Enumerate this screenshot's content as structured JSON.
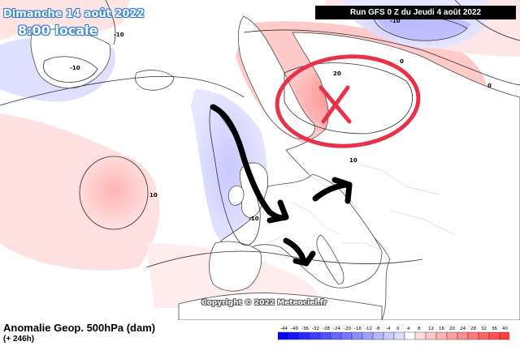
{
  "header": {
    "date": "Dimanche 14 août 2022",
    "time": "8:00 locale",
    "run": "Run GFS 0 Z du Jeudi 4 août 2022"
  },
  "map": {
    "copyright": "Copyright © 2022 Meteociel.fr",
    "contour_labels": [
      "-10",
      "-10",
      "-10",
      "0",
      "0",
      "20",
      "10",
      "-10",
      "10"
    ],
    "anomaly_colors": {
      "negative": "#dcdcff",
      "positive_weak": "#ffdcdc",
      "positive_mid": "#ff9b9b",
      "positive_strong": "#ff8282",
      "land": "#ffffff",
      "coast": "#4a4a4a",
      "annotation_red": "#e8324a",
      "annotation_black": "#000000"
    }
  },
  "footer": {
    "title": "Anomalie Geop. 500hPa (dam)",
    "lead": "(+ 246h)",
    "scale_labels": [
      "-44",
      "-40",
      "-36",
      "-32",
      "-28",
      "-24",
      "-20",
      "-16",
      "-12",
      "-8",
      "-4",
      "0",
      "4",
      "8",
      "12",
      "16",
      "20",
      "24",
      "28",
      "32",
      "36",
      "40"
    ],
    "scale_colors": [
      "#0000ff",
      "#1414ff",
      "#2828ff",
      "#3c3cff",
      "#5050ff",
      "#6464ff",
      "#7878ff",
      "#8c8cff",
      "#a0a0ff",
      "#b4b4ff",
      "#c8c8ff",
      "#dcdcff",
      "#ffffff",
      "#ffdcdc",
      "#ffc8c8",
      "#ffb4b4",
      "#ffa0a0",
      "#ff8c8c",
      "#ff7878",
      "#ff6464",
      "#ff5050",
      "#ff3c3c"
    ]
  }
}
